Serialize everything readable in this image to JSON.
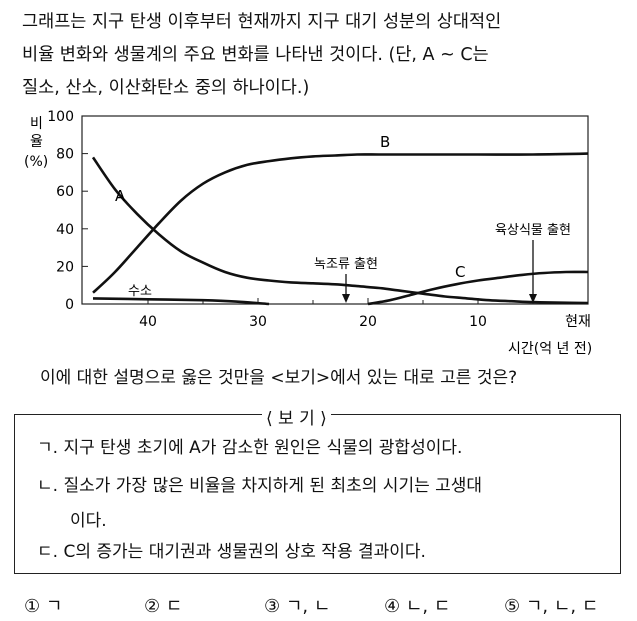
{
  "intro": {
    "line1": "그래프는 지구 탄생 이후부터 현재까지 지구 대기 성분의 상대적인",
    "line2": "비율 변화와 생물계의 주요 변화를 나타낸 것이다. (단, A ~ C는",
    "line3": "질소, 산소, 이산화탄소 중의 하나이다.)"
  },
  "chart_data": {
    "type": "line",
    "ylabel": "비율(%)",
    "xlabel": "시간(억 년 전)",
    "xlim": [
      46,
      0
    ],
    "ylim": [
      0,
      100
    ],
    "x_ticks": [
      "40",
      "30",
      "20",
      "10",
      "현재"
    ],
    "y_ticks": [
      "0",
      "20",
      "40",
      "60",
      "80",
      "100"
    ],
    "series": [
      {
        "name": "A",
        "x": [
          45,
          43,
          41,
          39,
          37,
          35,
          33,
          31,
          29,
          27,
          25,
          23,
          21,
          19,
          17,
          15,
          13,
          11,
          9,
          7,
          5,
          3,
          0
        ],
        "y": [
          78,
          61,
          48,
          37,
          28,
          22,
          17,
          14,
          12.5,
          11.5,
          11,
          10.5,
          9.5,
          8.5,
          7,
          5.5,
          4,
          3,
          2,
          1.5,
          1,
          0.8,
          0.5
        ]
      },
      {
        "name": "B",
        "x": [
          45,
          43,
          41,
          39,
          37,
          35,
          33,
          31,
          29,
          27,
          25,
          23,
          21,
          19,
          17,
          15,
          10,
          5,
          0
        ],
        "y": [
          6,
          17,
          30,
          43,
          55,
          64,
          70,
          74,
          76,
          77.5,
          78.5,
          79,
          79.5,
          79.5,
          79.5,
          79.5,
          79.5,
          79.5,
          80
        ]
      },
      {
        "name": "수소",
        "x": [
          45,
          40,
          35,
          32,
          29
        ],
        "y": [
          3,
          2.5,
          2,
          1.3,
          0
        ]
      },
      {
        "name": "C",
        "x": [
          20,
          18,
          16,
          14,
          12,
          10,
          8,
          6,
          4,
          2,
          0
        ],
        "y": [
          0,
          2,
          5,
          8,
          10.5,
          12.5,
          14,
          15.5,
          16.5,
          17,
          17
        ]
      }
    ],
    "annotations": [
      {
        "text": "녹조류 출현",
        "x": 22
      },
      {
        "text": "육상식물 출현",
        "x": 5
      }
    ]
  },
  "question": "이에 대한 설명으로 옳은 것만을 <보기>에서 있는 대로 고른 것은?",
  "bogi": {
    "title": "보 기",
    "items": [
      {
        "label": "ㄱ.",
        "text": "지구 탄생 초기에 A가 감소한 원인은 식물의 광합성이다."
      },
      {
        "label": "ㄴ.",
        "text": "질소가 가장 많은 비율을 차지하게 된 최초의 시기는 고생대",
        "cont": "이다."
      },
      {
        "label": "ㄷ.",
        "text": "C의 증가는 대기권과 생물권의 상호 작용 결과이다."
      }
    ]
  },
  "answers": [
    "① ㄱ",
    "② ㄷ",
    "③ ㄱ, ㄴ",
    "④ ㄴ, ㄷ",
    "⑤ ㄱ, ㄴ, ㄷ"
  ]
}
